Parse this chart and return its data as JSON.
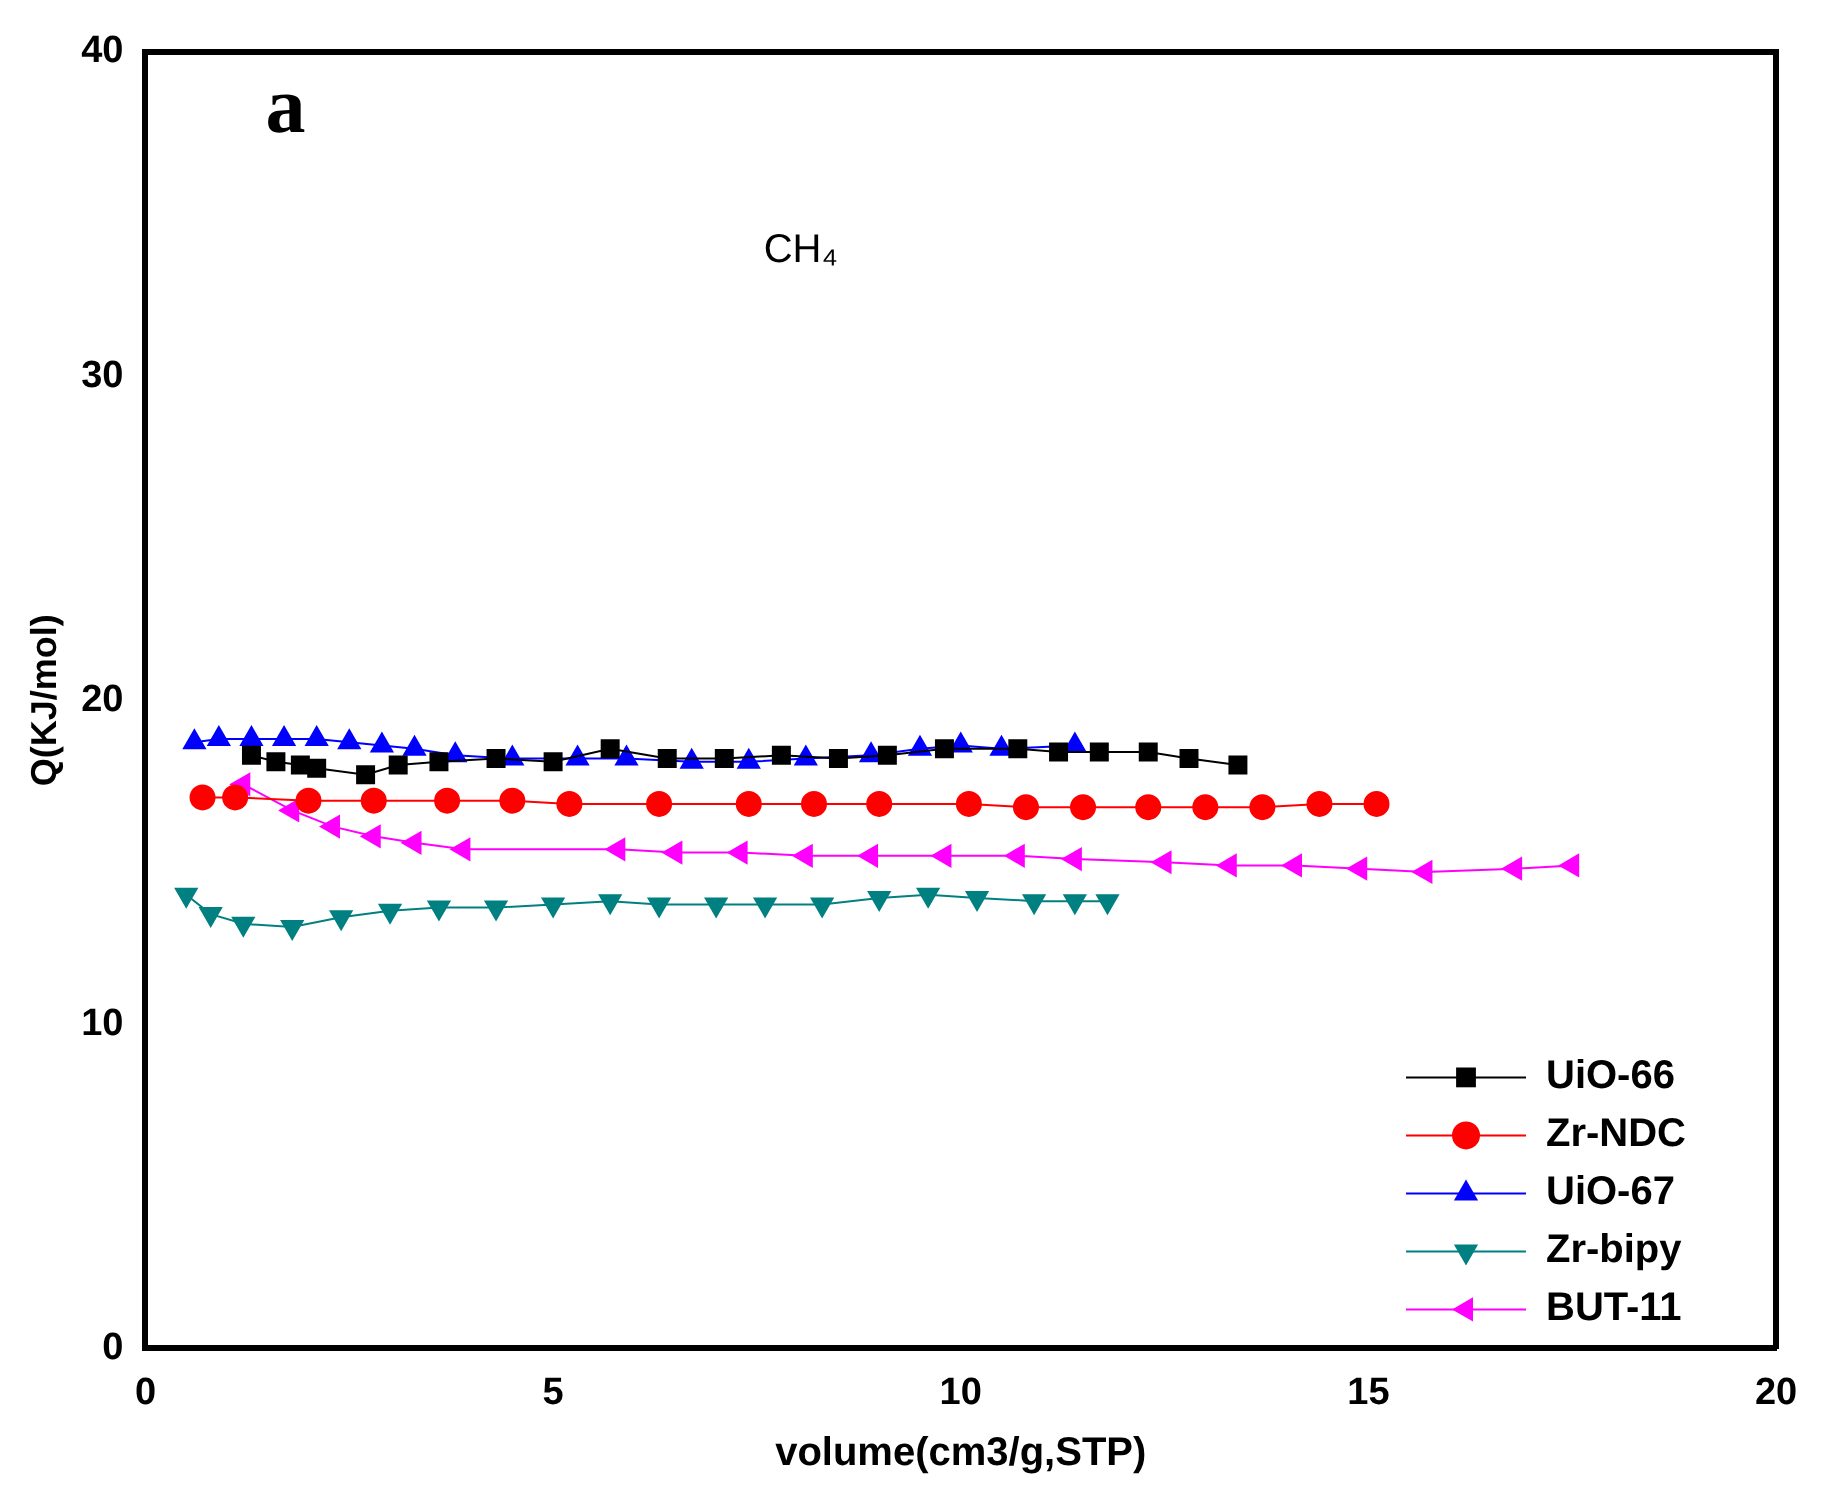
{
  "chart_data": {
    "type": "line",
    "xlabel": "volume(cm3/g,STP)",
    "ylabel": "Q(KJ/mol)",
    "xlim": [
      0,
      20
    ],
    "xticks": [
      0,
      5,
      10,
      15,
      20
    ],
    "ylim": [
      0,
      40
    ],
    "yticks": [
      0,
      10,
      20,
      30,
      40
    ],
    "grid": false,
    "legend": "bottom right",
    "annotations": [
      "a",
      "CH₄"
    ],
    "series": [
      {
        "name": "UiO-66",
        "color": "#000000",
        "marker": "square",
        "x": [
          1.3,
          1.6,
          1.9,
          2.1,
          2.7,
          3.1,
          3.6,
          4.3,
          5.0,
          5.7,
          6.4,
          7.1,
          7.8,
          8.5,
          9.1,
          9.8,
          10.7,
          11.2,
          11.7,
          12.3,
          12.8,
          13.4
        ],
        "values": [
          18.3,
          18.1,
          18.0,
          17.9,
          17.7,
          18.0,
          18.1,
          18.2,
          18.1,
          18.5,
          18.2,
          18.2,
          18.3,
          18.2,
          18.3,
          18.5,
          18.5,
          18.4,
          18.4,
          18.4,
          18.2,
          18.0
        ]
      },
      {
        "name": "Zr-NDC",
        "color": "#ff0000",
        "marker": "circle",
        "x": [
          0.7,
          1.1,
          2.0,
          2.8,
          3.7,
          4.5,
          5.2,
          6.3,
          7.4,
          8.2,
          9.0,
          10.1,
          10.8,
          11.5,
          12.3,
          13.0,
          13.7,
          14.4,
          15.1
        ],
        "values": [
          17.0,
          17.0,
          16.9,
          16.9,
          16.9,
          16.9,
          16.8,
          16.8,
          16.8,
          16.8,
          16.8,
          16.8,
          16.7,
          16.7,
          16.7,
          16.7,
          16.7,
          16.8,
          16.8
        ]
      },
      {
        "name": "UiO-67",
        "color": "#0000ff",
        "marker": "triangle",
        "x": [
          0.6,
          0.9,
          1.3,
          1.7,
          2.1,
          2.5,
          2.9,
          3.3,
          3.8,
          4.5,
          5.3,
          5.9,
          6.7,
          7.4,
          8.1,
          8.9,
          9.5,
          10.0,
          10.5,
          11.4
        ],
        "values": [
          18.7,
          18.8,
          18.8,
          18.8,
          18.8,
          18.7,
          18.6,
          18.5,
          18.3,
          18.2,
          18.2,
          18.2,
          18.1,
          18.1,
          18.2,
          18.3,
          18.5,
          18.6,
          18.5,
          18.6
        ]
      },
      {
        "name": "Zr-bipy",
        "color": "#008080",
        "marker": "triangle",
        "x": [
          0.5,
          0.8,
          1.2,
          1.8,
          2.4,
          3.0,
          3.6,
          4.3,
          5.0,
          5.7,
          6.3,
          7.0,
          7.6,
          8.3,
          9.0,
          9.6,
          10.2,
          10.9,
          11.4,
          11.8
        ],
        "values": [
          14.0,
          13.4,
          13.1,
          13.0,
          13.3,
          13.5,
          13.6,
          13.6,
          13.7,
          13.8,
          13.7,
          13.7,
          13.7,
          13.7,
          13.9,
          14.0,
          13.9,
          13.8,
          13.8,
          13.8
        ]
      },
      {
        "name": "BUT-11",
        "color": "#ff00ff",
        "marker": "triangle",
        "x": [
          1.2,
          1.8,
          2.3,
          2.8,
          3.3,
          3.9,
          5.8,
          6.5,
          7.3,
          8.1,
          8.9,
          9.8,
          10.7,
          11.4,
          12.5,
          13.3,
          14.1,
          14.9,
          15.7,
          16.8,
          17.5
        ],
        "values": [
          17.4,
          16.6,
          16.1,
          15.8,
          15.6,
          15.4,
          15.4,
          15.3,
          15.3,
          15.2,
          15.2,
          15.2,
          15.2,
          15.1,
          15.0,
          14.9,
          14.9,
          14.8,
          14.7,
          14.8,
          14.9
        ]
      }
    ]
  }
}
